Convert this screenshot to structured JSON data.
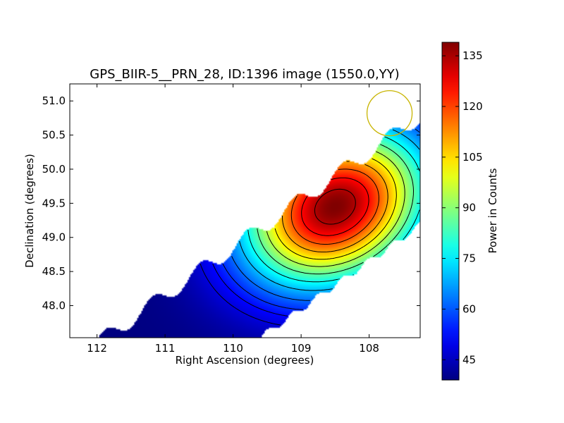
{
  "chart_data": {
    "type": "heatmap",
    "title": "GPS_BIIR-5__PRN_28, ID:1396 image (1550.0,YY)",
    "xlabel": "Right Ascension (degrees)",
    "ylabel": "Declination (degrees)",
    "xlim": [
      112.4,
      107.25
    ],
    "ylim": [
      47.53,
      51.25
    ],
    "x_ticks": [
      112,
      111,
      110,
      109,
      108
    ],
    "x_tick_labels": [
      "112",
      "111",
      "110",
      "109",
      "108"
    ],
    "y_ticks": [
      48.0,
      48.5,
      49.0,
      49.5,
      50.0,
      50.5,
      51.0
    ],
    "y_tick_labels": [
      "48.0",
      "48.5",
      "49.0",
      "49.5",
      "50.0",
      "50.5",
      "51.0"
    ],
    "colorbar": {
      "label": "Power in Counts",
      "range": [
        39,
        139
      ],
      "ticks": [
        45,
        60,
        75,
        90,
        105,
        120,
        135
      ],
      "tick_labels": [
        "45",
        "60",
        "75",
        "90",
        "105",
        "120",
        "135"
      ],
      "colormap": "jet"
    },
    "peak": {
      "ra": 108.5,
      "dec": 49.45,
      "value": 139
    },
    "contour_levels": [
      48,
      52,
      56,
      62,
      70,
      78,
      86,
      94,
      102,
      110,
      118,
      126,
      134
    ],
    "beam_marker": {
      "ra": 107.7,
      "dec": 50.82,
      "color": "#c8b400"
    }
  }
}
